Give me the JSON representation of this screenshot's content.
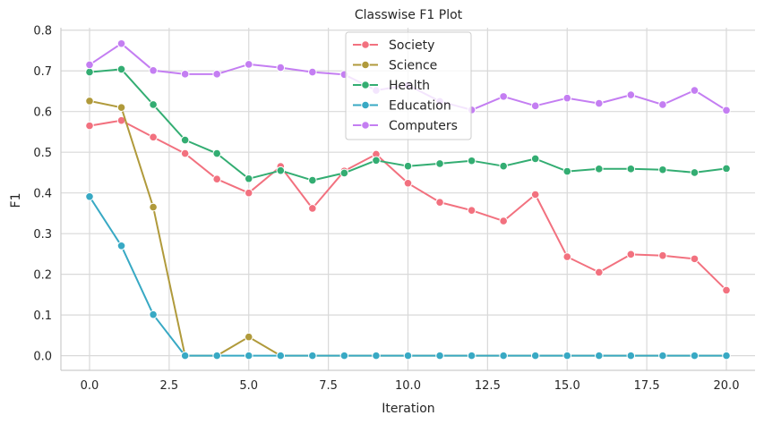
{
  "chart_data": {
    "type": "line",
    "title": "Classwise F1 Plot",
    "xlabel": "Iteration",
    "ylabel": "F1",
    "xlim": [
      -0.9,
      20.9
    ],
    "ylim": [
      -0.036,
      0.806
    ],
    "xticks": [
      0.0,
      2.5,
      5.0,
      7.5,
      10.0,
      12.5,
      15.0,
      17.5,
      20.0
    ],
    "xtick_labels": [
      "0.0",
      "2.5",
      "5.0",
      "7.5",
      "10.0",
      "12.5",
      "15.0",
      "17.5",
      "20.0"
    ],
    "yticks": [
      0.0,
      0.1,
      0.2,
      0.3,
      0.4,
      0.5,
      0.6,
      0.7,
      0.8
    ],
    "ytick_labels": [
      "0.0",
      "0.1",
      "0.2",
      "0.3",
      "0.4",
      "0.5",
      "0.6",
      "0.7",
      "0.8"
    ],
    "grid": true,
    "legend_position": "top-center",
    "x": [
      0,
      1,
      2,
      3,
      4,
      5,
      6,
      7,
      8,
      9,
      10,
      11,
      12,
      13,
      14,
      15,
      16,
      17,
      18,
      19,
      20
    ],
    "series": [
      {
        "name": "Society",
        "color": "#f2717f",
        "values": [
          0.565,
          0.578,
          0.537,
          0.497,
          0.434,
          0.4,
          0.465,
          0.362,
          0.454,
          0.495,
          0.424,
          0.377,
          0.357,
          0.331,
          0.396,
          0.243,
          0.205,
          0.249,
          0.246,
          0.238,
          0.161
        ]
      },
      {
        "name": "Science",
        "color": "#b09a3b",
        "values": [
          0.626,
          0.61,
          0.365,
          0.0,
          0.0,
          0.046,
          0.0,
          0.0,
          0.0,
          0.0,
          0.0,
          0.0,
          0.0,
          0.0,
          0.0,
          0.0,
          0.0,
          0.0,
          0.0,
          0.0,
          0.0
        ]
      },
      {
        "name": "Health",
        "color": "#33ad72",
        "values": [
          0.697,
          0.704,
          0.617,
          0.53,
          0.497,
          0.435,
          0.455,
          0.431,
          0.449,
          0.48,
          0.466,
          0.472,
          0.479,
          0.466,
          0.484,
          0.453,
          0.459,
          0.459,
          0.457,
          0.45,
          0.46
        ]
      },
      {
        "name": "Education",
        "color": "#38a9c4",
        "values": [
          0.391,
          0.27,
          0.101,
          0.0,
          0.0,
          0.0,
          0.0,
          0.0,
          0.0,
          0.0,
          0.0,
          0.0,
          0.0,
          0.0,
          0.0,
          0.0,
          0.0,
          0.0,
          0.0,
          0.0,
          0.0
        ]
      },
      {
        "name": "Computers",
        "color": "#c47ef2",
        "values": [
          0.715,
          0.767,
          0.701,
          0.692,
          0.692,
          0.716,
          0.708,
          0.697,
          0.691,
          0.652,
          0.665,
          0.625,
          0.604,
          0.637,
          0.614,
          0.633,
          0.62,
          0.641,
          0.617,
          0.652,
          0.603
        ]
      }
    ]
  }
}
